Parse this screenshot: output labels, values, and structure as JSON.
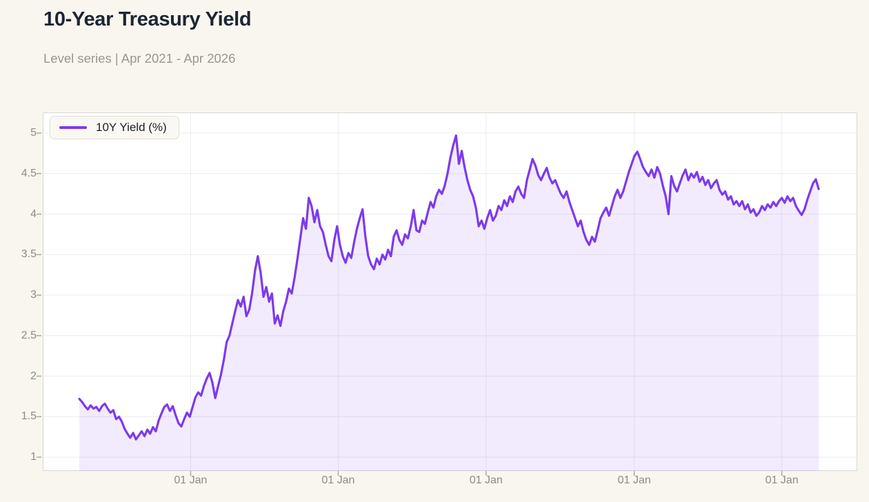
{
  "page": {
    "title": "10-Year Treasury Yield",
    "subtitle": "Level series | Apr 2021 - Apr 2026"
  },
  "legend": {
    "label": "10Y Yield (%)"
  },
  "colors": {
    "background": "#f8f6ef",
    "plot_background": "#ffffff",
    "plot_border": "#d7d7d3",
    "grid": "#ececec",
    "line": "#7c3aed",
    "fill": "rgba(124,58,237,0.10)",
    "tick_mark": "#a8a8a2",
    "tick_text": "#8c8c86",
    "title_text": "#1d2433",
    "subtitle_text": "#9a968e",
    "legend_background": "#faf8f2",
    "legend_border": "#e0ddd5"
  },
  "chart_data": {
    "type": "area",
    "title": "10-Year Treasury Yield",
    "series_name": "10Y Yield (%)",
    "x_range": [
      "Apr 2021",
      "Apr 2026"
    ],
    "sampling": "weekly points, week 0 = Apr 2021",
    "ylim": [
      1,
      5
    ],
    "grid": true,
    "legend_position": "top-left",
    "y_ticks": [
      {
        "value": 1,
        "label": "1"
      },
      {
        "value": 1.5,
        "label": "1.5"
      },
      {
        "value": 2,
        "label": "2"
      },
      {
        "value": 2.5,
        "label": "2.5"
      },
      {
        "value": 3,
        "label": "3"
      },
      {
        "value": 3.5,
        "label": "3.5"
      },
      {
        "value": 4,
        "label": "4"
      },
      {
        "value": 4.5,
        "label": "4.5"
      },
      {
        "value": 5,
        "label": "5"
      }
    ],
    "x_ticks": [
      {
        "label": "01 Jan",
        "date": "2022-01-01",
        "week_index": 39.3
      },
      {
        "label": "01 Jan",
        "date": "2023-01-01",
        "week_index": 91.4
      },
      {
        "label": "01 Jan",
        "date": "2024-01-01",
        "week_index": 143.6
      },
      {
        "label": "01 Jan",
        "date": "2025-01-01",
        "week_index": 195.9
      },
      {
        "label": "01 Jan",
        "date": "2026-01-01",
        "week_index": 248.0
      }
    ],
    "values": [
      1.72,
      1.68,
      1.63,
      1.59,
      1.64,
      1.6,
      1.62,
      1.57,
      1.63,
      1.66,
      1.6,
      1.55,
      1.58,
      1.47,
      1.5,
      1.44,
      1.35,
      1.29,
      1.24,
      1.3,
      1.22,
      1.27,
      1.32,
      1.26,
      1.34,
      1.29,
      1.37,
      1.32,
      1.45,
      1.54,
      1.62,
      1.65,
      1.57,
      1.63,
      1.52,
      1.42,
      1.38,
      1.47,
      1.55,
      1.5,
      1.62,
      1.74,
      1.8,
      1.76,
      1.88,
      1.97,
      2.04,
      1.92,
      1.73,
      1.88,
      2.02,
      2.2,
      2.42,
      2.5,
      2.65,
      2.8,
      2.94,
      2.86,
      2.98,
      2.74,
      2.82,
      3.02,
      3.3,
      3.48,
      3.28,
      2.98,
      3.1,
      2.92,
      3.02,
      2.65,
      2.75,
      2.62,
      2.8,
      2.92,
      3.08,
      3.02,
      3.22,
      3.45,
      3.7,
      3.95,
      3.82,
      4.2,
      4.1,
      3.9,
      4.05,
      3.85,
      3.78,
      3.62,
      3.48,
      3.42,
      3.68,
      3.85,
      3.62,
      3.48,
      3.4,
      3.52,
      3.46,
      3.65,
      3.82,
      3.95,
      4.06,
      3.72,
      3.48,
      3.38,
      3.32,
      3.45,
      3.38,
      3.5,
      3.44,
      3.56,
      3.48,
      3.72,
      3.8,
      3.68,
      3.62,
      3.75,
      3.7,
      3.85,
      4.05,
      3.8,
      3.78,
      3.92,
      3.88,
      4.02,
      4.15,
      4.08,
      4.22,
      4.3,
      4.25,
      4.35,
      4.5,
      4.7,
      4.85,
      4.97,
      4.62,
      4.78,
      4.58,
      4.42,
      4.3,
      4.22,
      4.08,
      3.85,
      3.92,
      3.82,
      3.95,
      4.05,
      3.92,
      3.98,
      4.1,
      4.05,
      4.17,
      4.1,
      4.22,
      4.15,
      4.28,
      4.34,
      4.25,
      4.2,
      4.42,
      4.55,
      4.68,
      4.6,
      4.48,
      4.42,
      4.5,
      4.57,
      4.45,
      4.38,
      4.42,
      4.33,
      4.25,
      4.2,
      4.28,
      4.15,
      4.05,
      3.95,
      3.85,
      3.92,
      3.78,
      3.68,
      3.62,
      3.72,
      3.66,
      3.8,
      3.95,
      4.02,
      4.08,
      3.98,
      4.1,
      4.22,
      4.3,
      4.2,
      4.28,
      4.4,
      4.52,
      4.62,
      4.72,
      4.77,
      4.68,
      4.58,
      4.52,
      4.47,
      4.55,
      4.45,
      4.58,
      4.5,
      4.35,
      4.22,
      4.0,
      4.47,
      4.35,
      4.28,
      4.38,
      4.48,
      4.55,
      4.42,
      4.5,
      4.45,
      4.52,
      4.4,
      4.46,
      4.36,
      4.42,
      4.32,
      4.38,
      4.42,
      4.3,
      4.24,
      4.28,
      4.18,
      4.22,
      4.12,
      4.16,
      4.1,
      4.16,
      4.06,
      4.12,
      4.02,
      4.06,
      3.98,
      4.02,
      4.1,
      4.05,
      4.12,
      4.08,
      4.15,
      4.1,
      4.16,
      4.2,
      4.14,
      4.22,
      4.16,
      4.2,
      4.1,
      4.04,
      3.99,
      4.06,
      4.18,
      4.28,
      4.38,
      4.43,
      4.31
    ]
  }
}
